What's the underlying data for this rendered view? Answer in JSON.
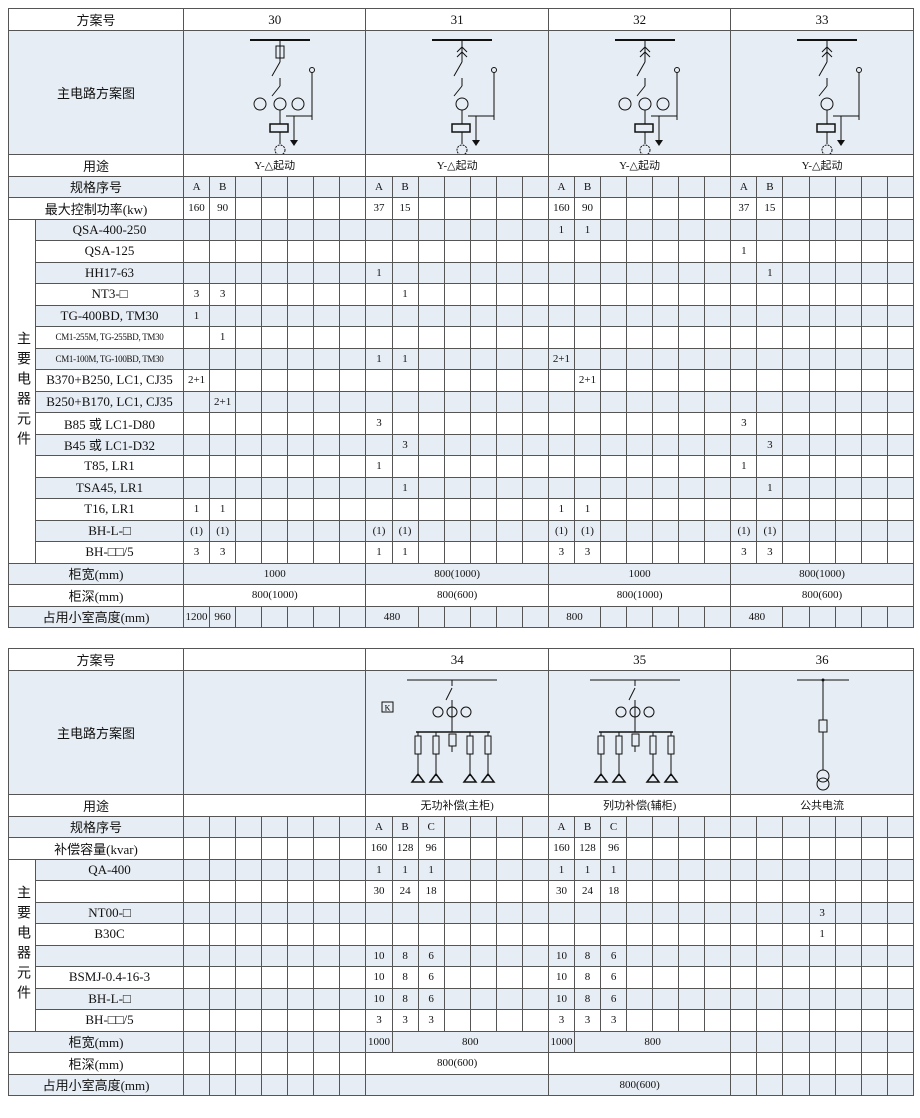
{
  "t1": {
    "header_label": "方案号",
    "schemes": [
      "30",
      "31",
      "32",
      "33"
    ],
    "diagram_label": "主电路方案图",
    "diagram_icons": [
      "star-delta-starter-fuse-diagram",
      "star-delta-starter-breaker-diagram",
      "star-delta-starter-switch-fuse-diagram",
      "star-delta-starter-switch-diagram"
    ],
    "group_label": "主要电器元件",
    "rows": [
      {
        "label": "用途",
        "shade": false,
        "cells": [
          {
            "t": "Y-△起动",
            "s": 7
          },
          {
            "t": "Y-△起动",
            "s": 7
          },
          {
            "t": "Y-△起动",
            "s": 7
          },
          {
            "t": "Y-△起动",
            "s": 7
          }
        ]
      },
      {
        "label": "规格序号",
        "shade": true,
        "cells": [
          "A",
          "B",
          "",
          "",
          "",
          "",
          "",
          "A",
          "B",
          "",
          "",
          "",
          "",
          "",
          "A",
          "B",
          "",
          "",
          "",
          "",
          "",
          "A",
          "B",
          "",
          "",
          "",
          "",
          ""
        ]
      },
      {
        "label": "最大控制功率(kw)",
        "shade": false,
        "cells": [
          "160",
          "90",
          "",
          "",
          "",
          "",
          "",
          "37",
          "15",
          "",
          "",
          "",
          "",
          "",
          "160",
          "90",
          "",
          "",
          "",
          "",
          "",
          "37",
          "15",
          "",
          "",
          "",
          "",
          ""
        ]
      },
      {
        "label": "QSA-400-250",
        "shade": true,
        "group": true,
        "cells": [
          "",
          "",
          "",
          "",
          "",
          "",
          "",
          "",
          "",
          "",
          "",
          "",
          "",
          "",
          "1",
          "1",
          "",
          "",
          "",
          "",
          "",
          "",
          "",
          "",
          "",
          "",
          "",
          ""
        ]
      },
      {
        "label": "QSA-125",
        "shade": false,
        "group": true,
        "cells": [
          "",
          "",
          "",
          "",
          "",
          "",
          "",
          "",
          "",
          "",
          "",
          "",
          "",
          "",
          "",
          "",
          "",
          "",
          "",
          "",
          "",
          "1",
          "",
          "",
          "",
          "",
          "",
          ""
        ]
      },
      {
        "label": "HH17-63",
        "shade": true,
        "group": true,
        "cells": [
          "",
          "",
          "",
          "",
          "",
          "",
          "",
          "1",
          "",
          "",
          "",
          "",
          "",
          "",
          "",
          "",
          "",
          "",
          "",
          "",
          "",
          "",
          "1",
          "",
          "",
          "",
          "",
          ""
        ]
      },
      {
        "label": "NT3-□",
        "shade": false,
        "group": true,
        "cells": [
          "3",
          "3",
          "",
          "",
          "",
          "",
          "",
          "",
          "1",
          "",
          "",
          "",
          "",
          "",
          "",
          "",
          "",
          "",
          "",
          "",
          "",
          "",
          "",
          "",
          "",
          "",
          "",
          ""
        ]
      },
      {
        "label": "TG-400BD, TM30",
        "shade": true,
        "group": true,
        "cells": [
          "1",
          "",
          "",
          "",
          "",
          "",
          "",
          "",
          "",
          "",
          "",
          "",
          "",
          "",
          "",
          "",
          "",
          "",
          "",
          "",
          "",
          "",
          "",
          "",
          "",
          "",
          "",
          ""
        ]
      },
      {
        "label": "CM1-255M, TG-255BD, TM30",
        "shade": false,
        "group": true,
        "small": true,
        "cells": [
          "",
          "1",
          "",
          "",
          "",
          "",
          "",
          "",
          "",
          "",
          "",
          "",
          "",
          "",
          "",
          "",
          "",
          "",
          "",
          "",
          "",
          "",
          "",
          "",
          "",
          "",
          "",
          ""
        ]
      },
      {
        "label": "CM1-100M, TG-100BD, TM30",
        "shade": true,
        "group": true,
        "small": true,
        "cells": [
          "",
          "",
          "",
          "",
          "",
          "",
          "",
          "1",
          "1",
          "",
          "",
          "",
          "",
          "",
          "2+1",
          "",
          "",
          "",
          "",
          "",
          "",
          "",
          "",
          "",
          "",
          "",
          "",
          ""
        ]
      },
      {
        "label": "B370+B250, LC1, CJ35",
        "shade": false,
        "group": true,
        "cells": [
          "2+1",
          "",
          "",
          "",
          "",
          "",
          "",
          "",
          "",
          "",
          "",
          "",
          "",
          "",
          "",
          "2+1",
          "",
          "",
          "",
          "",
          "",
          "",
          "",
          "",
          "",
          "",
          "",
          ""
        ]
      },
      {
        "label": "B250+B170, LC1, CJ35",
        "shade": true,
        "group": true,
        "cells": [
          "",
          "2+1",
          "",
          "",
          "",
          "",
          "",
          "",
          "",
          "",
          "",
          "",
          "",
          "",
          "",
          "",
          "",
          "",
          "",
          "",
          "",
          "",
          "",
          "",
          "",
          "",
          "",
          ""
        ]
      },
      {
        "label": "B85 或 LC1-D80",
        "shade": false,
        "group": true,
        "cells": [
          "",
          "",
          "",
          "",
          "",
          "",
          "",
          "3",
          "",
          "",
          "",
          "",
          "",
          "",
          "",
          "",
          "",
          "",
          "",
          "",
          "",
          "3",
          "",
          "",
          "",
          "",
          "",
          ""
        ]
      },
      {
        "label": "B45 或 LC1-D32",
        "shade": true,
        "group": true,
        "cells": [
          "",
          "",
          "",
          "",
          "",
          "",
          "",
          "",
          "3",
          "",
          "",
          "",
          "",
          "",
          "",
          "",
          "",
          "",
          "",
          "",
          "",
          "",
          "3",
          "",
          "",
          "",
          "",
          ""
        ]
      },
      {
        "label": "T85, LR1",
        "shade": false,
        "group": true,
        "cells": [
          "",
          "",
          "",
          "",
          "",
          "",
          "",
          "1",
          "",
          "",
          "",
          "",
          "",
          "",
          "",
          "",
          "",
          "",
          "",
          "",
          "",
          "1",
          "",
          "",
          "",
          "",
          "",
          ""
        ]
      },
      {
        "label": "TSA45, LR1",
        "shade": true,
        "group": true,
        "cells": [
          "",
          "",
          "",
          "",
          "",
          "",
          "",
          "",
          "1",
          "",
          "",
          "",
          "",
          "",
          "",
          "",
          "",
          "",
          "",
          "",
          "",
          "",
          "1",
          "",
          "",
          "",
          "",
          ""
        ]
      },
      {
        "label": "T16, LR1",
        "shade": false,
        "group": true,
        "cells": [
          "1",
          "1",
          "",
          "",
          "",
          "",
          "",
          "",
          "",
          "",
          "",
          "",
          "",
          "",
          "1",
          "1",
          "",
          "",
          "",
          "",
          "",
          "",
          "",
          "",
          "",
          "",
          "",
          ""
        ]
      },
      {
        "label": "BH-L-□",
        "shade": true,
        "group": true,
        "cells": [
          "(1)",
          "(1)",
          "",
          "",
          "",
          "",
          "",
          "(1)",
          "(1)",
          "",
          "",
          "",
          "",
          "",
          "(1)",
          "(1)",
          "",
          "",
          "",
          "",
          "",
          "(1)",
          "(1)",
          "",
          "",
          "",
          "",
          ""
        ]
      },
      {
        "label": "BH-□□/5",
        "shade": false,
        "group": true,
        "cells": [
          "3",
          "3",
          "",
          "",
          "",
          "",
          "",
          "1",
          "1",
          "",
          "",
          "",
          "",
          "",
          "3",
          "3",
          "",
          "",
          "",
          "",
          "",
          "3",
          "3",
          "",
          "",
          "",
          "",
          ""
        ]
      },
      {
        "label": "柜宽(mm)",
        "shade": true,
        "cells": [
          {
            "t": "1000",
            "s": 7
          },
          {
            "t": "800(1000)",
            "s": 7
          },
          {
            "t": "1000",
            "s": 7
          },
          {
            "t": "800(1000)",
            "s": 7
          }
        ]
      },
      {
        "label": "柜深(mm)",
        "shade": false,
        "cells": [
          {
            "t": "800(1000)",
            "s": 7
          },
          {
            "t": "800(600)",
            "s": 7
          },
          {
            "t": "800(1000)",
            "s": 7
          },
          {
            "t": "800(600)",
            "s": 7
          }
        ]
      },
      {
        "label": "占用小室高度(mm)",
        "shade": true,
        "cells": [
          "1200",
          "960",
          "",
          "",
          "",
          "",
          "",
          {
            "t": "480",
            "s": 2
          },
          "",
          "",
          "",
          "",
          "",
          {
            "t": "800",
            "s": 2
          },
          "",
          "",
          "",
          "",
          "",
          {
            "t": "480",
            "s": 2
          },
          "",
          "",
          "",
          "",
          ""
        ]
      }
    ]
  },
  "t2": {
    "header_label": "方案号",
    "schemes": [
      "",
      "34",
      "35",
      "36"
    ],
    "diagram_label": "主电路方案图",
    "diagram_icons": [
      "",
      "capacitor-bank-main-diagram",
      "capacitor-bank-aux-diagram",
      "metering-transformer-diagram"
    ],
    "diagram_badge": "K",
    "group_label": "主要电器元件",
    "rows": [
      {
        "label": "用途",
        "shade": false,
        "cells": [
          {
            "t": "",
            "s": 7
          },
          {
            "t": "无功补偿(主柜)",
            "s": 7
          },
          {
            "t": "列功补偿(辅柜)",
            "s": 7
          },
          {
            "t": "公共电流",
            "s": 7
          }
        ]
      },
      {
        "label": "规格序号",
        "shade": true,
        "cells": [
          "",
          "",
          "",
          "",
          "",
          "",
          "",
          "A",
          "B",
          "C",
          "",
          "",
          "",
          "",
          "A",
          "B",
          "C",
          "",
          "",
          "",
          "",
          "",
          "",
          "",
          "",
          "",
          "",
          ""
        ]
      },
      {
        "label": "补偿容量(kvar)",
        "shade": false,
        "cells": [
          "",
          "",
          "",
          "",
          "",
          "",
          "",
          "160",
          "128",
          "96",
          "",
          "",
          "",
          "",
          "160",
          "128",
          "96",
          "",
          "",
          "",
          "",
          "",
          "",
          "",
          "",
          "",
          "",
          ""
        ]
      },
      {
        "label": "QA-400",
        "shade": true,
        "group": true,
        "cells": [
          "",
          "",
          "",
          "",
          "",
          "",
          "",
          "1",
          "1",
          "1",
          "",
          "",
          "",
          "",
          "1",
          "1",
          "1",
          "",
          "",
          "",
          "",
          "",
          "",
          "",
          "",
          "",
          "",
          ""
        ]
      },
      {
        "label": "",
        "shade": false,
        "group": true,
        "cells": [
          "",
          "",
          "",
          "",
          "",
          "",
          "",
          "30",
          "24",
          "18",
          "",
          "",
          "",
          "",
          "30",
          "24",
          "18",
          "",
          "",
          "",
          "",
          "",
          "",
          "",
          "",
          "",
          "",
          ""
        ]
      },
      {
        "label": "NT00-□",
        "shade": true,
        "group": true,
        "cells": [
          "",
          "",
          "",
          "",
          "",
          "",
          "",
          "",
          "",
          "",
          "",
          "",
          "",
          "",
          "",
          "",
          "",
          "",
          "",
          "",
          "",
          "",
          "",
          "",
          "3",
          "",
          "",
          ""
        ]
      },
      {
        "label": "B30C",
        "shade": false,
        "group": true,
        "cells": [
          "",
          "",
          "",
          "",
          "",
          "",
          "",
          "",
          "",
          "",
          "",
          "",
          "",
          "",
          "",
          "",
          "",
          "",
          "",
          "",
          "",
          "",
          "",
          "",
          "1",
          "",
          "",
          ""
        ]
      },
      {
        "label": "",
        "shade": true,
        "group": true,
        "cells": [
          "",
          "",
          "",
          "",
          "",
          "",
          "",
          "10",
          "8",
          "6",
          "",
          "",
          "",
          "",
          "10",
          "8",
          "6",
          "",
          "",
          "",
          "",
          "",
          "",
          "",
          "",
          "",
          "",
          ""
        ]
      },
      {
        "label": "BSMJ-0.4-16-3",
        "shade": false,
        "group": true,
        "cells": [
          "",
          "",
          "",
          "",
          "",
          "",
          "",
          "10",
          "8",
          "6",
          "",
          "",
          "",
          "",
          "10",
          "8",
          "6",
          "",
          "",
          "",
          "",
          "",
          "",
          "",
          "",
          "",
          "",
          ""
        ]
      },
      {
        "label": "BH-L-□",
        "shade": true,
        "group": true,
        "cells": [
          "",
          "",
          "",
          "",
          "",
          "",
          "",
          "10",
          "8",
          "6",
          "",
          "",
          "",
          "",
          "10",
          "8",
          "6",
          "",
          "",
          "",
          "",
          "",
          "",
          "",
          "",
          "",
          "",
          ""
        ]
      },
      {
        "label": "BH-□□/5",
        "shade": false,
        "group": true,
        "cells": [
          "",
          "",
          "",
          "",
          "",
          "",
          "",
          "3",
          "3",
          "3",
          "",
          "",
          "",
          "",
          "3",
          "3",
          "3",
          "",
          "",
          "",
          "",
          "",
          "",
          "",
          "",
          "",
          "",
          ""
        ]
      },
      {
        "label": "柜宽(mm)",
        "shade": true,
        "cells": [
          "",
          "",
          "",
          "",
          "",
          "",
          "",
          "1000",
          {
            "t": "800",
            "s": 6
          },
          "1000",
          {
            "t": "800",
            "s": 6
          },
          "",
          "",
          "",
          "",
          "",
          "",
          ""
        ]
      },
      {
        "label": "柜深(mm)",
        "shade": false,
        "cells": [
          "",
          "",
          "",
          "",
          "",
          "",
          "",
          {
            "t": "800(600)",
            "s": 7
          },
          {
            "t": "",
            "s": 7
          },
          "",
          "",
          "",
          "",
          "",
          "",
          ""
        ]
      },
      {
        "label": "占用小室高度(mm)",
        "shade": true,
        "cells": [
          "",
          "",
          "",
          "",
          "",
          "",
          "",
          {
            "t": "",
            "s": 7
          },
          {
            "t": "800(600)",
            "s": 7
          },
          "",
          "",
          "",
          "",
          "",
          "",
          ""
        ]
      }
    ]
  }
}
